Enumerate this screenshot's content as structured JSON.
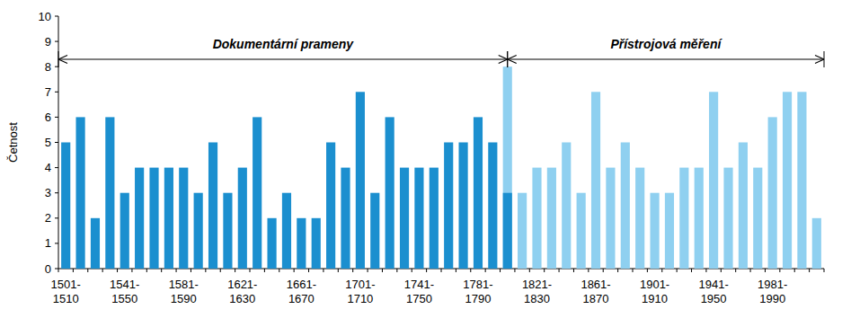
{
  "chart_data": {
    "type": "bar",
    "y_label": "Četnost",
    "categories": [
      "1501-1510",
      null,
      null,
      null,
      "1541-1550",
      null,
      null,
      null,
      "1581-1590",
      null,
      null,
      null,
      "1621-1630",
      null,
      null,
      null,
      "1661-1670",
      null,
      null,
      null,
      "1701-1710",
      null,
      null,
      null,
      "1741-1750",
      null,
      null,
      null,
      "1781-1790",
      null,
      null,
      null,
      "1821-1830",
      null,
      null,
      null,
      "1861-1870",
      null,
      null,
      null,
      "1901-1910",
      null,
      null,
      null,
      "1941-1950",
      null,
      null,
      null,
      "1981-1990",
      null,
      null,
      null
    ],
    "series": [
      {
        "name": "Dokumentární prameny",
        "color": "#1b8fcf",
        "values": [
          5,
          6,
          2,
          6,
          3,
          4,
          4,
          4,
          4,
          3,
          5,
          3,
          4,
          6,
          2,
          3,
          2,
          2,
          5,
          4,
          7,
          3,
          6,
          4,
          4,
          4,
          5,
          5,
          6,
          5,
          3,
          null,
          null,
          null,
          null,
          null,
          null,
          null,
          null,
          null,
          null,
          null,
          null,
          null,
          null,
          null,
          null,
          null,
          null,
          null,
          null,
          null
        ]
      },
      {
        "name": "Přístrojová měření",
        "color": "#8fd0f0",
        "values": [
          null,
          null,
          null,
          null,
          null,
          null,
          null,
          null,
          null,
          null,
          null,
          null,
          null,
          null,
          null,
          null,
          null,
          null,
          null,
          null,
          null,
          null,
          null,
          null,
          null,
          null,
          null,
          null,
          null,
          null,
          8,
          3,
          4,
          4,
          5,
          3,
          7,
          4,
          5,
          4,
          3,
          3,
          4,
          4,
          7,
          4,
          5,
          4,
          6,
          7,
          7,
          2
        ]
      }
    ],
    "ylim": [
      0,
      10
    ],
    "yticks": [
      0,
      1,
      2,
      3,
      4,
      5,
      6,
      7,
      8,
      9,
      10
    ],
    "grid": false
  }
}
